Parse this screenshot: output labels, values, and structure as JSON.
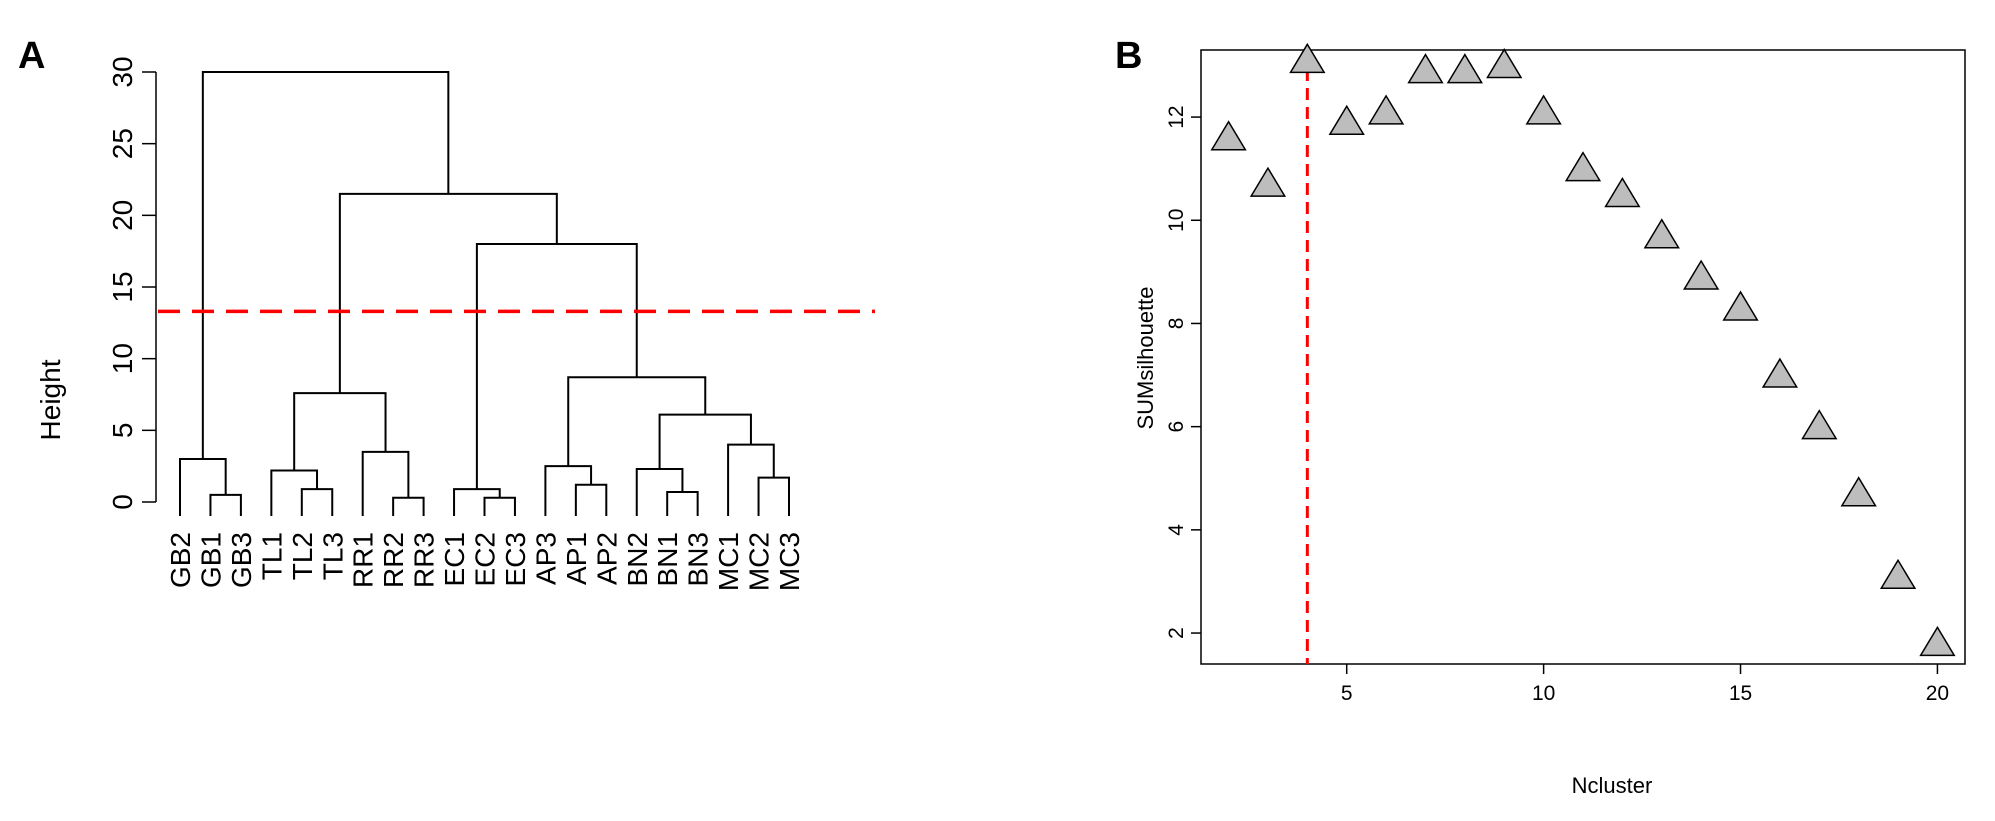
{
  "chart_data": [
    {
      "type": "dendrogram",
      "panel_label": "A",
      "ylabel": "Height",
      "ylim": [
        0,
        30
      ],
      "yticks": [
        0,
        5,
        10,
        15,
        20,
        25,
        30
      ],
      "cut_height": 13.3,
      "leaves": [
        "GB2",
        "GB1",
        "GB3",
        "TL1",
        "TL2",
        "TL3",
        "RR1",
        "RR2",
        "RR3",
        "EC1",
        "EC2",
        "EC3",
        "AP3",
        "AP1",
        "AP2",
        "BN2",
        "BN1",
        "BN3",
        "MC1",
        "MC2",
        "MC3"
      ],
      "merges": [
        {
          "a": "GB1",
          "b": "GB3",
          "height": 0.5
        },
        {
          "a": "GB2",
          "b": "GB1+GB3",
          "height": 3.0
        },
        {
          "a": "TL2",
          "b": "TL3",
          "height": 0.9
        },
        {
          "a": "TL1",
          "b": "TL2+TL3",
          "height": 2.2
        },
        {
          "a": "RR2",
          "b": "RR3",
          "height": 0.3
        },
        {
          "a": "RR1",
          "b": "RR2+RR3",
          "height": 3.5
        },
        {
          "a": "TL",
          "b": "RR",
          "height": 7.6
        },
        {
          "a": "EC2",
          "b": "EC3",
          "height": 0.3
        },
        {
          "a": "EC1",
          "b": "EC2+EC3",
          "height": 0.9
        },
        {
          "a": "AP1",
          "b": "AP2",
          "height": 1.2
        },
        {
          "a": "AP3",
          "b": "AP1+AP2",
          "height": 2.5
        },
        {
          "a": "BN1",
          "b": "BN3",
          "height": 0.7
        },
        {
          "a": "BN2",
          "b": "BN1+BN3",
          "height": 2.3
        },
        {
          "a": "MC2",
          "b": "MC3",
          "height": 1.7
        },
        {
          "a": "MC1",
          "b": "MC2+MC3",
          "height": 4.0
        },
        {
          "a": "BN",
          "b": "MC",
          "height": 6.1
        },
        {
          "a": "AP",
          "b": "BN+MC",
          "height": 8.7
        },
        {
          "a": "EC",
          "b": "AP+BN+MC",
          "height": 18.0
        },
        {
          "a": "TL+RR",
          "b": "EC+AP+BN+MC",
          "height": 21.5
        },
        {
          "a": "GB",
          "b": "rest",
          "height": 30.0
        }
      ]
    },
    {
      "type": "scatter",
      "panel_label": "B",
      "xlabel": "Ncluster",
      "ylabel": "SUMsilhouette",
      "xlim": [
        1.3,
        20.7
      ],
      "ylim": [
        1.4,
        13.3
      ],
      "xticks": [
        5,
        10,
        15,
        20
      ],
      "yticks": [
        2,
        4,
        6,
        8,
        10,
        12
      ],
      "vline_x": 4,
      "marker": "triangle",
      "marker_color": "#bdbdbd",
      "x": [
        2,
        3,
        4,
        5,
        6,
        7,
        8,
        9,
        10,
        11,
        12,
        13,
        14,
        15,
        16,
        17,
        18,
        19,
        20
      ],
      "y": [
        11.6,
        10.7,
        13.1,
        11.9,
        12.1,
        12.9,
        12.9,
        13.0,
        12.1,
        11.0,
        10.5,
        9.7,
        8.9,
        8.3,
        7.0,
        6.0,
        4.7,
        3.1,
        1.8
      ]
    }
  ],
  "colors": {
    "cut_line": "#ff0000",
    "marker_fill": "#bdbdbd",
    "ink": "#000000"
  }
}
